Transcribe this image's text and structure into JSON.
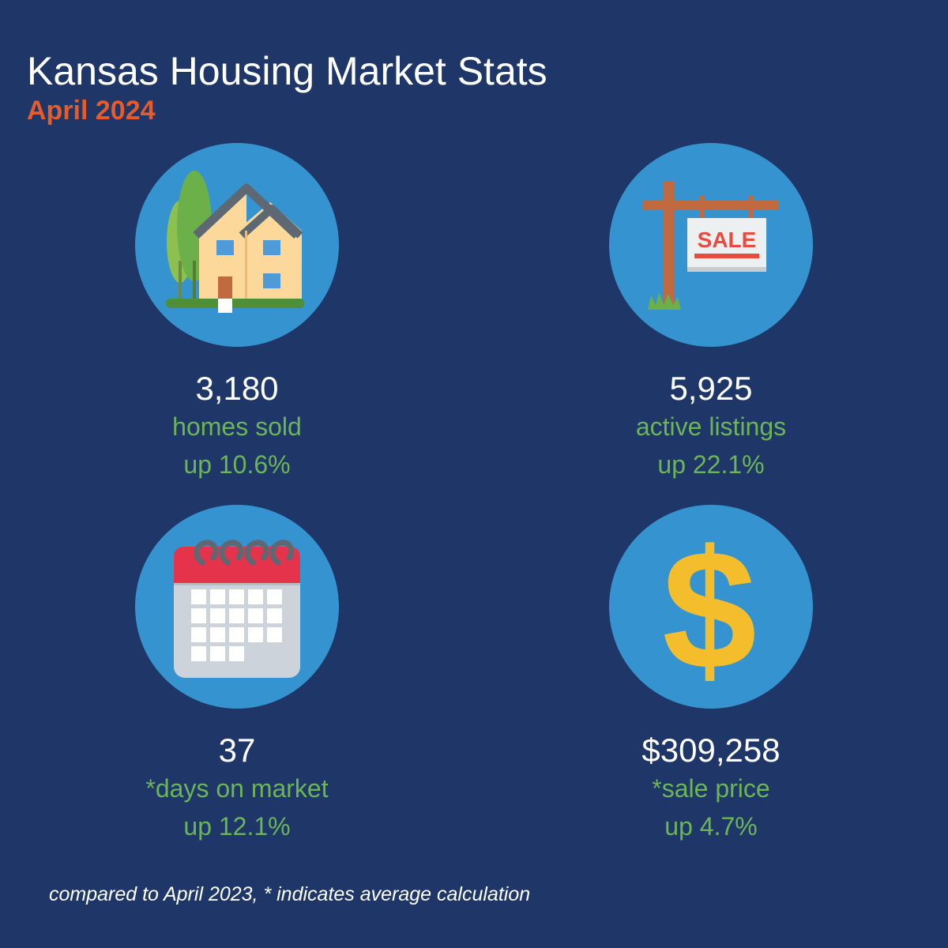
{
  "header": {
    "title": "Kansas Housing Market Stats",
    "subtitle": "April 2024"
  },
  "stats": [
    {
      "icon": "house-icon",
      "value": "3,180",
      "label": "homes sold",
      "change": "up 10.6%"
    },
    {
      "icon": "for-sale-sign-icon",
      "value": "5,925",
      "label": "active listings",
      "change": "up 22.1%",
      "sign_text": "SALE"
    },
    {
      "icon": "calendar-icon",
      "value": "37",
      "label": "*days on market",
      "change": "up 12.1%"
    },
    {
      "icon": "dollar-sign-icon",
      "value": "$309,258",
      "label": "*sale price",
      "change": "up 4.7%",
      "symbol": "$"
    }
  ],
  "footnote": "compared to April 2023,  * indicates average calculation",
  "colors": {
    "background": "#1e3768",
    "icon_circle": "#3594d0",
    "subtitle": "#e55b2b",
    "stat_label": "#6cb557",
    "value_text": "#ffffff"
  }
}
